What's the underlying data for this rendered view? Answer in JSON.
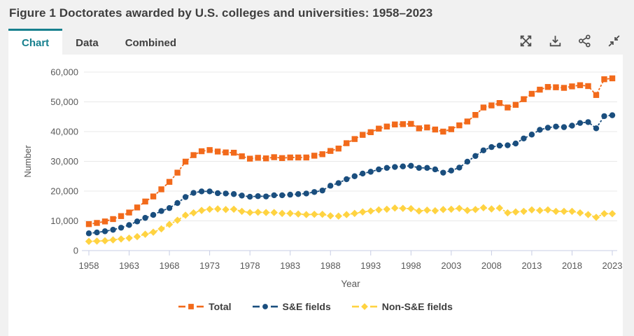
{
  "figure": {
    "title": "Figure 1 Doctorates awarded by U.S. colleges and universities: 1958–2023"
  },
  "tabs": [
    {
      "label": "Chart",
      "active": true
    },
    {
      "label": "Data",
      "active": false
    },
    {
      "label": "Combined",
      "active": false
    }
  ],
  "toolbar": {
    "icons": [
      "fullscreen",
      "download",
      "share",
      "collapse"
    ]
  },
  "colors": {
    "page_bg": "#F1F1F1",
    "card_bg": "#FFFFFF",
    "accent_teal": "#17808E",
    "title_text": "#3E3E3E",
    "tab_text": "#3F3F3F",
    "icon": "#4D4D4D",
    "grid": "#E8E8E8",
    "axis": "#C7CDE4",
    "axis_text": "#595959",
    "legend_text": "#3E3E3E"
  },
  "chart_data": {
    "type": "line",
    "title": "Figure 1 Doctorates awarded by U.S. colleges and universities: 1958–2023",
    "xlabel": "Year",
    "ylabel": "Number",
    "ylim": [
      0,
      60000
    ],
    "ytick_step": 10000,
    "xticks": [
      1958,
      1963,
      1968,
      1973,
      1978,
      1983,
      1988,
      1993,
      1998,
      2003,
      2008,
      2013,
      2018,
      2023
    ],
    "grid": "horizontal",
    "legend_position": "bottom",
    "years": [
      1958,
      1959,
      1960,
      1961,
      1962,
      1963,
      1964,
      1965,
      1966,
      1967,
      1968,
      1969,
      1970,
      1971,
      1972,
      1973,
      1974,
      1975,
      1976,
      1977,
      1978,
      1979,
      1980,
      1981,
      1982,
      1983,
      1984,
      1985,
      1986,
      1987,
      1988,
      1989,
      1990,
      1991,
      1992,
      1993,
      1994,
      1995,
      1996,
      1997,
      1998,
      1999,
      2000,
      2001,
      2002,
      2003,
      2004,
      2005,
      2006,
      2007,
      2008,
      2009,
      2010,
      2011,
      2012,
      2013,
      2014,
      2015,
      2016,
      2017,
      2018,
      2019,
      2020,
      2021,
      2022,
      2023
    ],
    "series": [
      {
        "name": "Total",
        "marker": "square",
        "color": "#F26A1B",
        "values": [
          8900,
          9300,
          9800,
          10600,
          11600,
          12800,
          14500,
          16500,
          18200,
          20600,
          23100,
          26200,
          29900,
          32100,
          33400,
          33800,
          33300,
          33000,
          32900,
          31700,
          30900,
          31200,
          31000,
          31400,
          31100,
          31300,
          31300,
          31300,
          31900,
          32400,
          33500,
          34300,
          36100,
          37500,
          38900,
          39800,
          41000,
          41700,
          42400,
          42500,
          42600,
          41100,
          41400,
          40700,
          40000,
          40800,
          42100,
          43400,
          45600,
          48100,
          48800,
          49600,
          48100,
          49000,
          50900,
          52700,
          54100,
          55000,
          54900,
          54700,
          55200,
          55600,
          55300,
          52300,
          57600,
          57900
        ]
      },
      {
        "name": "S&E fields",
        "marker": "circle",
        "color": "#1A4E7E",
        "values": [
          5800,
          6100,
          6500,
          7000,
          7700,
          8600,
          9800,
          11000,
          12000,
          13300,
          14300,
          16000,
          18000,
          19400,
          19900,
          19900,
          19300,
          19200,
          19000,
          18500,
          18100,
          18300,
          18200,
          18600,
          18600,
          18800,
          19000,
          19200,
          19700,
          20200,
          21800,
          22700,
          24000,
          25000,
          25900,
          26500,
          27300,
          27800,
          28100,
          28300,
          28500,
          27800,
          27800,
          27300,
          26200,
          26900,
          27900,
          29900,
          31800,
          33700,
          34800,
          35300,
          35400,
          36000,
          37700,
          39000,
          40600,
          41300,
          41700,
          41500,
          42000,
          42900,
          43200,
          41100,
          45200,
          45500
        ]
      },
      {
        "name": "Non-S&E fields",
        "marker": "diamond",
        "color": "#FFD341",
        "values": [
          3100,
          3200,
          3300,
          3600,
          3900,
          4200,
          4700,
          5500,
          6200,
          7300,
          8800,
          10200,
          11900,
          12700,
          13500,
          13900,
          14000,
          13800,
          13900,
          13200,
          12800,
          12900,
          12800,
          12800,
          12500,
          12500,
          12300,
          12100,
          12200,
          12200,
          11700,
          11600,
          12100,
          12500,
          13000,
          13300,
          13700,
          13900,
          14300,
          14200,
          14100,
          13300,
          13600,
          13400,
          13800,
          13900,
          14200,
          13500,
          13800,
          14400,
          14000,
          14300,
          12700,
          13000,
          13200,
          13700,
          13500,
          13700,
          13200,
          13200,
          13200,
          12700,
          12100,
          11200,
          12400,
          12400
        ]
      }
    ]
  }
}
